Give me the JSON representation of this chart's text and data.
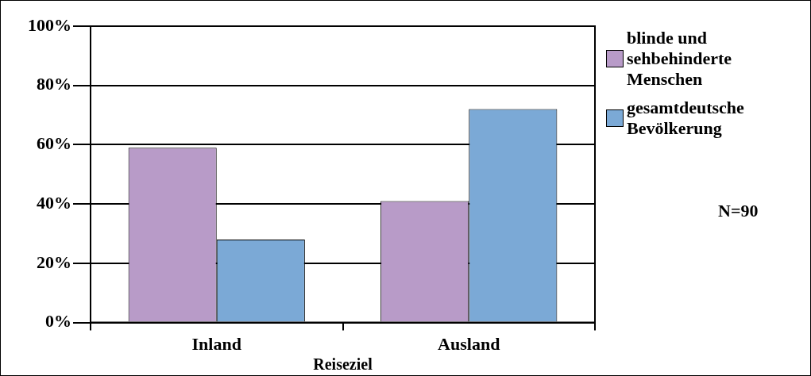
{
  "chart_data": {
    "type": "bar",
    "xlabel": "Reiseziel",
    "categories": [
      "Inland",
      "Ausland"
    ],
    "series": [
      {
        "name": "blinde und sehbehinderte Menschen",
        "color": "#b89bc8",
        "values": [
          59,
          41
        ]
      },
      {
        "name": "gesamtdeutsche Bevölkerung",
        "color": "#7ba9d6",
        "values": [
          28,
          72
        ]
      }
    ],
    "ylim": [
      0,
      100
    ],
    "yticks": [
      {
        "value": 0,
        "label": "0%"
      },
      {
        "value": 20,
        "label": "20%"
      },
      {
        "value": 40,
        "label": "40%"
      },
      {
        "value": 60,
        "label": "60%"
      },
      {
        "value": 80,
        "label": "80%"
      },
      {
        "value": 100,
        "label": "100%"
      }
    ],
    "grid": "y",
    "legend": "right",
    "annotations": [
      "N=90"
    ]
  }
}
